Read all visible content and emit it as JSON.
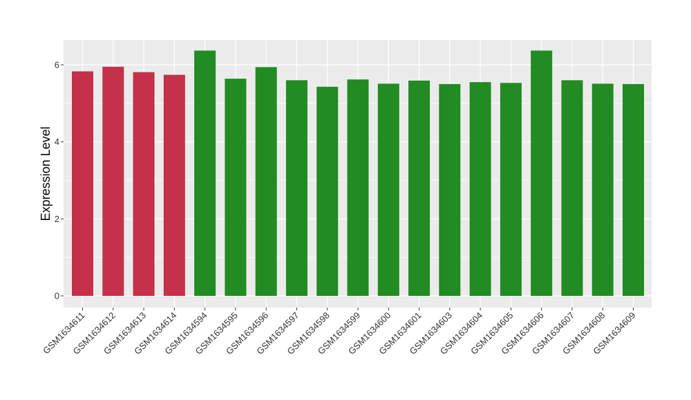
{
  "chart_data": {
    "type": "bar",
    "title": "",
    "xlabel": "",
    "ylabel": "Expression Level",
    "ylim": [
      0,
      6.6
    ],
    "yticks": [
      0,
      2,
      4,
      6
    ],
    "grid": true,
    "background": "#EBEBEB",
    "categories": [
      "GSM1634611",
      "GSM1634612",
      "GSM1634613",
      "GSM1634614",
      "GSM1634594",
      "GSM1634595",
      "GSM1634596",
      "GSM1634597",
      "GSM1634598",
      "GSM1634599",
      "GSM1634600",
      "GSM1634601",
      "GSM1634603",
      "GSM1634604",
      "GSM1634605",
      "GSM1634606",
      "GSM1634607",
      "GSM1634608",
      "GSM1634609"
    ],
    "values": [
      5.83,
      5.95,
      5.81,
      5.74,
      6.37,
      5.64,
      5.94,
      5.6,
      5.43,
      5.62,
      5.51,
      5.59,
      5.5,
      5.55,
      5.53,
      6.37,
      5.6,
      5.51,
      5.5
    ],
    "colors": [
      "#C5304A",
      "#C5304A",
      "#C5304A",
      "#C5304A",
      "#228B22",
      "#228B22",
      "#228B22",
      "#228B22",
      "#228B22",
      "#228B22",
      "#228B22",
      "#228B22",
      "#228B22",
      "#228B22",
      "#228B22",
      "#228B22",
      "#228B22",
      "#228B22",
      "#228B22"
    ]
  }
}
